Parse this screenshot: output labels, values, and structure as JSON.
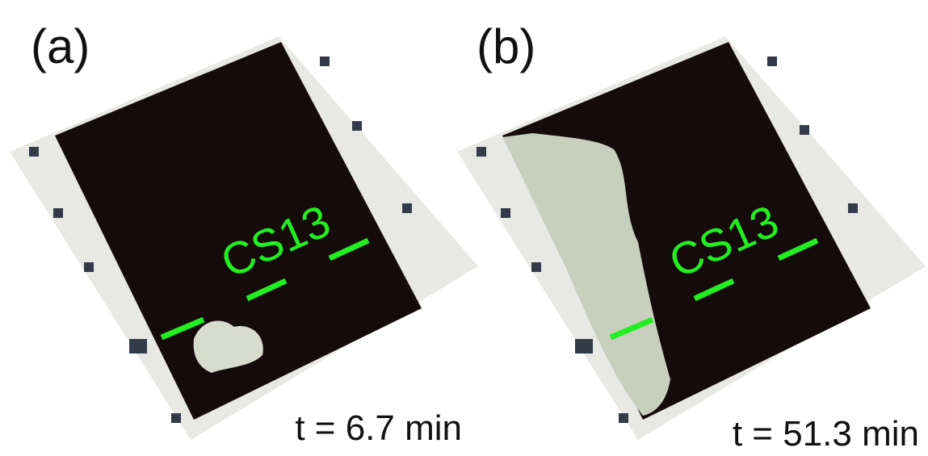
{
  "panels": [
    {
      "label": "(a)",
      "section": "CS13",
      "time": "t = 6.7 min"
    },
    {
      "label": "(b)",
      "section": "CS13",
      "time": "t = 51.3 min"
    }
  ]
}
